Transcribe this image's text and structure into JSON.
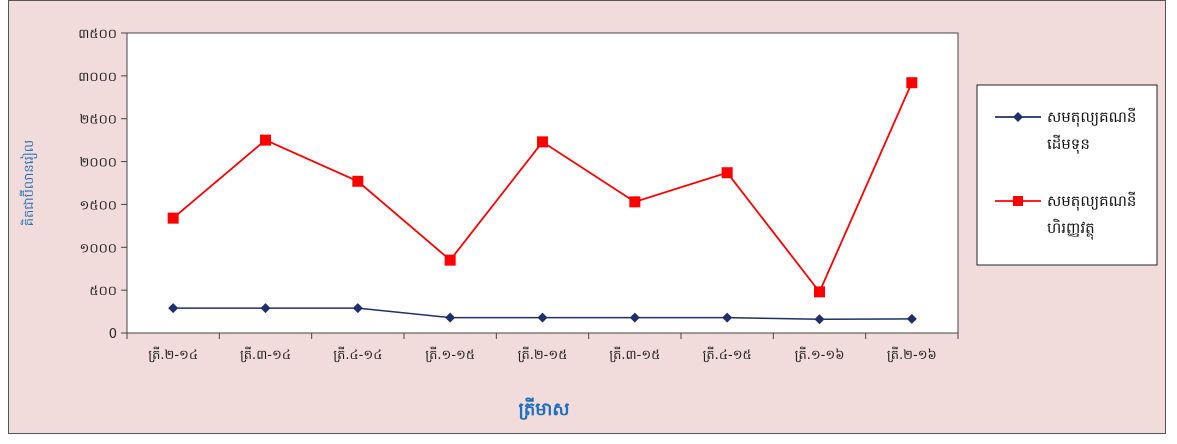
{
  "chart_data": {
    "type": "line",
    "title": "",
    "xlabel": "ត្រីមាស",
    "ylabel": "គិតជាប៊ីលានរៀល",
    "categories": [
      "ត្រី.២-១៤",
      "ត្រី.៣-១៤",
      "ត្រី.៤-១៤",
      "ត្រី.១-១៥",
      "ត្រី.២-១៥",
      "ត្រី.៣-១៥",
      "ត្រី.៤-១៥",
      "ត្រី.១-១៦",
      "ត្រី.២-១៦"
    ],
    "ylim": [
      0,
      3500
    ],
    "yticks": [
      0,
      500,
      1000,
      1500,
      2000,
      2500,
      3000,
      3500
    ],
    "ytick_labels": [
      "0",
      "៥០០",
      "១០០០",
      "១៥០០",
      "២០០០",
      "២៥០០",
      "៣០០០",
      "៣៥០០"
    ],
    "grid": false,
    "legend_position": "right",
    "series": [
      {
        "name": "សមតុល្យគណនីដើមទុន",
        "legend_lines": [
          "សមតុល្យគណនី",
          "ដើមទុន"
        ],
        "color": "#1f2f6e",
        "marker": "diamond",
        "values": [
          290,
          290,
          290,
          180,
          180,
          180,
          180,
          160,
          165
        ]
      },
      {
        "name": "សមតុល្យគណនីហិរញ្ញវត្ថុ",
        "legend_lines": [
          "សមតុល្យគណនី",
          "ហិរញ្ញវត្ថុ"
        ],
        "color": "#ff0000",
        "marker": "square",
        "values": [
          1340,
          2250,
          1770,
          850,
          2230,
          1530,
          1870,
          480,
          2920
        ]
      }
    ]
  },
  "colors": {
    "frame_background": "#f2dcdb",
    "plot_background": "#ffffff",
    "axis_title": "#2e75b6"
  }
}
